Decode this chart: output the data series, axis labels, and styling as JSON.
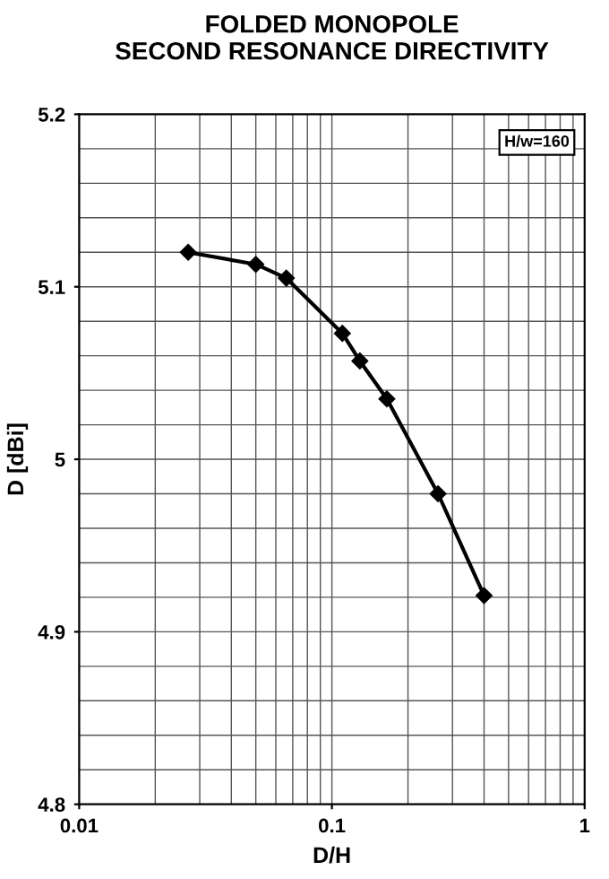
{
  "chart_data": {
    "type": "line",
    "title": "FOLDED MONOPOLE\nSECOND RESONANCE DIRECTIVITY",
    "xlabel": "D/H",
    "ylabel": "D [dBi]",
    "x": [
      0.027,
      0.05,
      0.066,
      0.11,
      0.129,
      0.165,
      0.263,
      0.4
    ],
    "series": [
      {
        "color": "#000000",
        "values": [
          5.12,
          5.113,
          5.105,
          5.073,
          5.057,
          5.035,
          4.98,
          4.921
        ]
      }
    ],
    "log": "x",
    "xlim": [
      0.01,
      1
    ],
    "xticks": [
      0.01,
      0.1,
      1
    ],
    "ylim": [
      4.8,
      5.2
    ],
    "yticks": [
      4.8,
      4.9,
      5,
      5.1,
      5.2
    ],
    "grid": true,
    "marker": "diamond",
    "line_style": "solid",
    "annotations": [
      "H/w=160"
    ]
  }
}
